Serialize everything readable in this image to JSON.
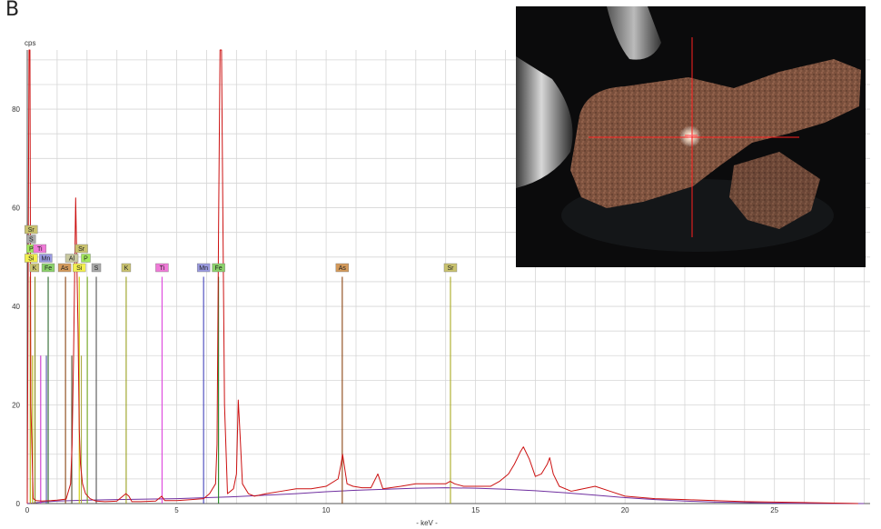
{
  "panel_label": "B",
  "chart_data": {
    "type": "line",
    "xlabel": "- keV -",
    "ylabel": "cps",
    "xlim": [
      0,
      28.2
    ],
    "ylim": [
      0,
      92
    ],
    "x_ticks": [
      0,
      5,
      10,
      15,
      20,
      25
    ],
    "y_ticks": [
      0,
      20,
      40,
      60,
      80
    ],
    "grid": true,
    "spectrum_color": "#cc1111",
    "background_color": "#7030a0",
    "spectrum": {
      "x": [
        0.0,
        0.06,
        0.09,
        0.12,
        0.2,
        0.3,
        0.5,
        0.8,
        1.0,
        1.3,
        1.45,
        1.5,
        1.55,
        1.62,
        1.7,
        1.74,
        1.78,
        1.85,
        1.95,
        2.1,
        2.3,
        2.6,
        3.0,
        3.3,
        3.4,
        3.5,
        3.8,
        4.3,
        4.5,
        4.6,
        5.0,
        5.5,
        5.9,
        6.0,
        6.1,
        6.3,
        6.35,
        6.4,
        6.45,
        6.5,
        6.55,
        6.6,
        6.7,
        6.9,
        7.0,
        7.06,
        7.12,
        7.2,
        7.4,
        7.6,
        8.0,
        8.5,
        9.0,
        9.5,
        10.0,
        10.4,
        10.5,
        10.55,
        10.6,
        10.7,
        10.9,
        11.2,
        11.5,
        11.73,
        11.9,
        12.5,
        13.0,
        13.5,
        14.0,
        14.15,
        14.3,
        14.6,
        15.0,
        15.5,
        15.8,
        16.1,
        16.3,
        16.5,
        16.6,
        16.8,
        17.0,
        17.2,
        17.4,
        17.48,
        17.6,
        17.8,
        18.2,
        18.6,
        19.0,
        19.5,
        20.0,
        21.0,
        22.0,
        23.0,
        24.0,
        25.0,
        26.0,
        27.0,
        27.8
      ],
      "y": [
        0,
        92,
        92,
        20,
        1,
        0.6,
        0.5,
        0.6,
        0.7,
        0.9,
        4,
        12,
        30,
        62,
        35,
        15,
        8,
        4,
        2,
        1,
        0.5,
        0.4,
        0.5,
        2,
        1.5,
        0.4,
        0.4,
        0.5,
        1.5,
        0.6,
        0.6,
        0.8,
        1,
        1.5,
        2,
        4,
        12,
        55,
        92,
        92,
        55,
        20,
        2,
        3,
        6,
        21,
        14,
        4,
        2,
        1.5,
        2,
        2.5,
        3,
        3,
        3.5,
        5,
        8,
        10,
        8,
        4,
        3.5,
        3.2,
        3.2,
        6,
        3,
        3.5,
        4,
        4,
        4,
        4.5,
        4,
        3.5,
        3.5,
        3.5,
        4.5,
        6,
        8,
        10.5,
        11.5,
        9,
        5.5,
        6,
        8,
        9.3,
        6,
        3.5,
        2.5,
        3,
        3.5,
        2.5,
        1.5,
        1,
        0.8,
        0.6,
        0.4,
        0.3,
        0.2,
        0.1,
        0
      ]
    },
    "background_curve": {
      "x": [
        0,
        0.5,
        1,
        2,
        3,
        4,
        5,
        6,
        7,
        8,
        9,
        10,
        11,
        12,
        13,
        14,
        15,
        16,
        17,
        18,
        19,
        20,
        21,
        22,
        23,
        24,
        25,
        26,
        27,
        28
      ],
      "y": [
        0,
        0.3,
        0.5,
        0.7,
        0.8,
        0.9,
        1.0,
        1.2,
        1.4,
        1.7,
        2.0,
        2.4,
        2.7,
        2.9,
        3.1,
        3.2,
        3.1,
        2.9,
        2.6,
        2.2,
        1.7,
        1.2,
        0.8,
        0.5,
        0.3,
        0.2,
        0.1,
        0.05,
        0.02,
        0
      ]
    },
    "element_lines": [
      {
        "element": "Fe",
        "energy": 0.7,
        "color": "#2e6b2e",
        "tall": true
      },
      {
        "element": "K",
        "energy": 0.26,
        "color": "#8a8a1e",
        "tall": true
      },
      {
        "element": "Si",
        "energy": 0.1,
        "color": "#b0b000",
        "tall": true
      },
      {
        "element": "P",
        "energy": 0.18,
        "color": "#b0b000",
        "tall": false
      },
      {
        "element": "Ti",
        "energy": 0.45,
        "color": "#cc33cc",
        "tall": false
      },
      {
        "element": "Mn",
        "energy": 0.64,
        "color": "#5555aa",
        "tall": false
      },
      {
        "element": "As",
        "energy": 1.28,
        "color": "#8b4513",
        "tall": true
      },
      {
        "element": "Al",
        "energy": 1.49,
        "color": "#555533",
        "tall": false
      },
      {
        "element": "Si",
        "energy": 1.74,
        "color": "#cccc00",
        "tall": true
      },
      {
        "element": "P",
        "energy": 2.01,
        "color": "#77aa22",
        "tall": true
      },
      {
        "element": "Sr",
        "energy": 1.81,
        "color": "#aaaa44",
        "tall": false
      },
      {
        "element": "S",
        "energy": 2.31,
        "color": "#555555",
        "tall": true
      },
      {
        "element": "K",
        "energy": 3.31,
        "color": "#9aa020",
        "tall": true
      },
      {
        "element": "Ti",
        "energy": 4.51,
        "color": "#dd44dd",
        "tall": true
      },
      {
        "element": "Mn",
        "energy": 5.9,
        "color": "#4444bb",
        "tall": true
      },
      {
        "element": "Fe",
        "energy": 6.4,
        "color": "#228822",
        "tall": true
      },
      {
        "element": "As",
        "energy": 10.54,
        "color": "#8b4513",
        "tall": true
      },
      {
        "element": "Sr",
        "energy": 14.16,
        "color": "#aaaa22",
        "tall": true
      }
    ],
    "element_tags": [
      {
        "label": "Sr",
        "energy": 0.13,
        "row": 4,
        "color": "#c9c26e"
      },
      {
        "label": "S",
        "energy": 0.13,
        "row": 3,
        "color": "#a8a8a8"
      },
      {
        "label": "P",
        "energy": 0.13,
        "row": 2,
        "color": "#a3e85c"
      },
      {
        "label": "Ti",
        "energy": 0.42,
        "row": 2,
        "color": "#f07ad8"
      },
      {
        "label": "Si",
        "energy": 0.13,
        "row": 1,
        "color": "#f2ef4e"
      },
      {
        "label": "Mn",
        "energy": 0.62,
        "row": 1,
        "color": "#9a9ae0"
      },
      {
        "label": "K",
        "energy": 0.24,
        "row": 0,
        "color": "#c9c26e"
      },
      {
        "label": "Fe",
        "energy": 0.7,
        "row": 0,
        "color": "#8bd16a"
      },
      {
        "label": "As",
        "energy": 1.25,
        "row": 0,
        "color": "#d49a5a"
      },
      {
        "label": "Al",
        "energy": 1.49,
        "row": 1,
        "color": "#c8c8a0"
      },
      {
        "label": "Sr",
        "energy": 1.81,
        "row": 2,
        "color": "#c9c26e"
      },
      {
        "label": "P",
        "energy": 1.96,
        "row": 1,
        "color": "#a3e85c"
      },
      {
        "label": "Si",
        "energy": 1.74,
        "row": 0,
        "color": "#f2ef4e"
      },
      {
        "label": "S",
        "energy": 2.31,
        "row": 0,
        "color": "#a8a8a8"
      },
      {
        "label": "K",
        "energy": 3.31,
        "row": 0,
        "color": "#c9c26e"
      },
      {
        "label": "Ti",
        "energy": 4.51,
        "row": 0,
        "color": "#f07ad8"
      },
      {
        "label": "Mn",
        "energy": 5.9,
        "row": 0,
        "color": "#9a9ae0"
      },
      {
        "label": "Fe",
        "energy": 6.4,
        "row": 0,
        "color": "#8bd16a"
      },
      {
        "label": "As",
        "energy": 10.54,
        "row": 0,
        "color": "#d49a5a"
      },
      {
        "label": "Sr",
        "energy": 14.16,
        "row": 0,
        "color": "#c9c26e"
      }
    ]
  },
  "photo": {
    "background_color": "#0b0b0c",
    "particle_color": "#8a5a44",
    "crosshair_color": "#ff2020"
  }
}
